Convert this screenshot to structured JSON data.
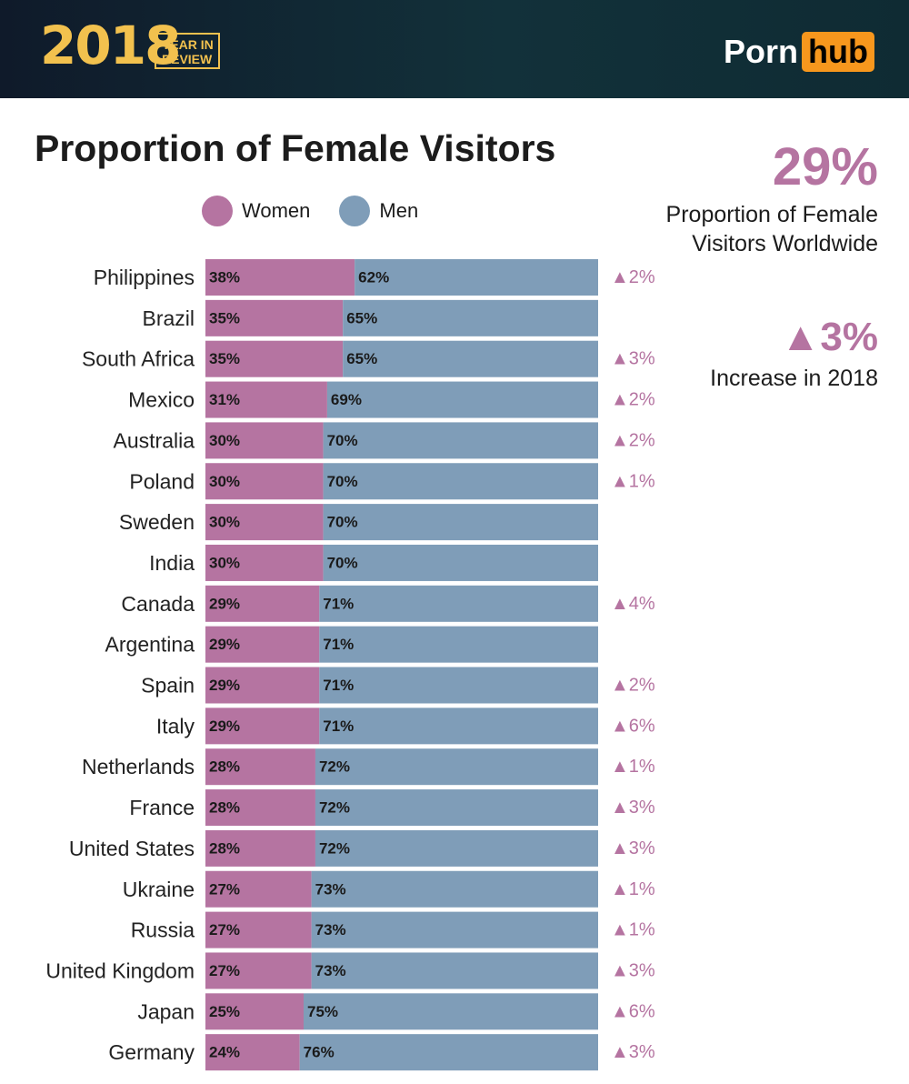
{
  "header": {
    "year": "2018",
    "year_sub_line1": "YEAR IN",
    "year_sub_line2": "REVIEW",
    "brand_part1": "Porn",
    "brand_part2": "hub"
  },
  "colors": {
    "women": "#b574a1",
    "men": "#7f9db8",
    "accent": "#b574a1",
    "brand_orange": "#f7971d"
  },
  "side_stats": {
    "worldwide_pct": "29%",
    "worldwide_text": "Proportion of Female Visitors Worldwide",
    "increase": "▲3%",
    "increase_text": "Increase in 2018"
  },
  "chart_data": {
    "type": "bar",
    "orientation": "horizontal",
    "stacked": true,
    "title": "Proportion of Female Visitors",
    "legend": [
      "Women",
      "Men"
    ],
    "legend_position": "top",
    "xlim": [
      0,
      100
    ],
    "categories": [
      "Philippines",
      "Brazil",
      "South Africa",
      "Mexico",
      "Australia",
      "Poland",
      "Sweden",
      "India",
      "Canada",
      "Argentina",
      "Spain",
      "Italy",
      "Netherlands",
      "France",
      "United States",
      "Ukraine",
      "Russia",
      "United Kingdom",
      "Japan",
      "Germany"
    ],
    "series": [
      {
        "name": "Women",
        "values": [
          38,
          35,
          35,
          31,
          30,
          30,
          30,
          30,
          29,
          29,
          29,
          29,
          28,
          28,
          28,
          27,
          27,
          27,
          25,
          24
        ]
      },
      {
        "name": "Men",
        "values": [
          62,
          65,
          65,
          69,
          70,
          70,
          70,
          70,
          71,
          71,
          71,
          71,
          72,
          72,
          72,
          73,
          73,
          73,
          75,
          76
        ]
      }
    ],
    "changes": [
      "▲2%",
      "",
      "▲3%",
      "▲2%",
      "▲2%",
      "▲1%",
      "",
      "",
      "▲4%",
      "",
      "▲2%",
      "▲6%",
      "▲1%",
      "▲3%",
      "▲3%",
      "▲1%",
      "▲1%",
      "▲3%",
      "▲6%",
      "▲3%"
    ]
  }
}
